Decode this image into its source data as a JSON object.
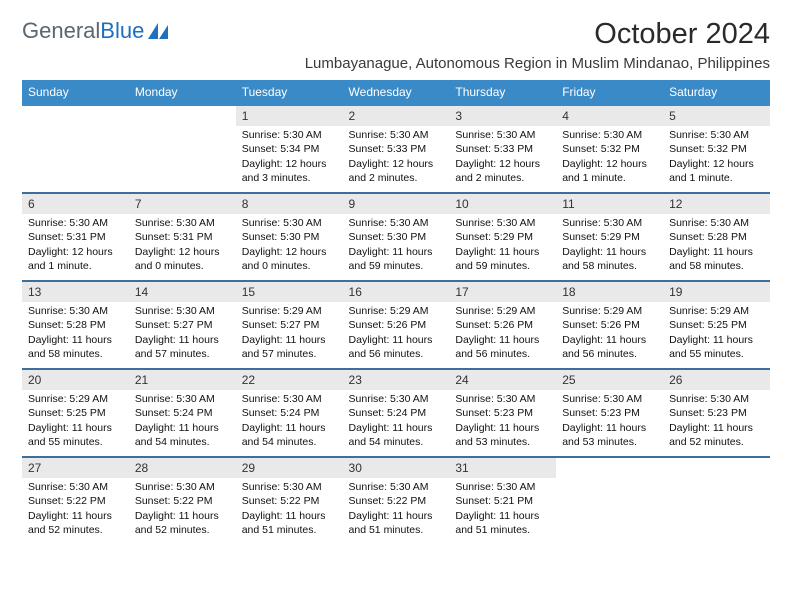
{
  "brand": {
    "part1": "General",
    "part2": "Blue"
  },
  "title": "October 2024",
  "subtitle": "Lumbayanague, Autonomous Region in Muslim Mindanao, Philippines",
  "colors": {
    "header_bg": "#3a8ac8",
    "header_text": "#ffffff",
    "row_divider": "#3c6f9e",
    "daynum_bg": "#e9e9e9",
    "brand_gray": "#5a6670",
    "brand_blue": "#1e6fc0"
  },
  "day_headers": [
    "Sunday",
    "Monday",
    "Tuesday",
    "Wednesday",
    "Thursday",
    "Friday",
    "Saturday"
  ],
  "weeks": [
    [
      null,
      null,
      {
        "n": "1",
        "sr": "5:30 AM",
        "ss": "5:34 PM",
        "dl": "12 hours and 3 minutes."
      },
      {
        "n": "2",
        "sr": "5:30 AM",
        "ss": "5:33 PM",
        "dl": "12 hours and 2 minutes."
      },
      {
        "n": "3",
        "sr": "5:30 AM",
        "ss": "5:33 PM",
        "dl": "12 hours and 2 minutes."
      },
      {
        "n": "4",
        "sr": "5:30 AM",
        "ss": "5:32 PM",
        "dl": "12 hours and 1 minute."
      },
      {
        "n": "5",
        "sr": "5:30 AM",
        "ss": "5:32 PM",
        "dl": "12 hours and 1 minute."
      }
    ],
    [
      {
        "n": "6",
        "sr": "5:30 AM",
        "ss": "5:31 PM",
        "dl": "12 hours and 1 minute."
      },
      {
        "n": "7",
        "sr": "5:30 AM",
        "ss": "5:31 PM",
        "dl": "12 hours and 0 minutes."
      },
      {
        "n": "8",
        "sr": "5:30 AM",
        "ss": "5:30 PM",
        "dl": "12 hours and 0 minutes."
      },
      {
        "n": "9",
        "sr": "5:30 AM",
        "ss": "5:30 PM",
        "dl": "11 hours and 59 minutes."
      },
      {
        "n": "10",
        "sr": "5:30 AM",
        "ss": "5:29 PM",
        "dl": "11 hours and 59 minutes."
      },
      {
        "n": "11",
        "sr": "5:30 AM",
        "ss": "5:29 PM",
        "dl": "11 hours and 58 minutes."
      },
      {
        "n": "12",
        "sr": "5:30 AM",
        "ss": "5:28 PM",
        "dl": "11 hours and 58 minutes."
      }
    ],
    [
      {
        "n": "13",
        "sr": "5:30 AM",
        "ss": "5:28 PM",
        "dl": "11 hours and 58 minutes."
      },
      {
        "n": "14",
        "sr": "5:30 AM",
        "ss": "5:27 PM",
        "dl": "11 hours and 57 minutes."
      },
      {
        "n": "15",
        "sr": "5:29 AM",
        "ss": "5:27 PM",
        "dl": "11 hours and 57 minutes."
      },
      {
        "n": "16",
        "sr": "5:29 AM",
        "ss": "5:26 PM",
        "dl": "11 hours and 56 minutes."
      },
      {
        "n": "17",
        "sr": "5:29 AM",
        "ss": "5:26 PM",
        "dl": "11 hours and 56 minutes."
      },
      {
        "n": "18",
        "sr": "5:29 AM",
        "ss": "5:26 PM",
        "dl": "11 hours and 56 minutes."
      },
      {
        "n": "19",
        "sr": "5:29 AM",
        "ss": "5:25 PM",
        "dl": "11 hours and 55 minutes."
      }
    ],
    [
      {
        "n": "20",
        "sr": "5:29 AM",
        "ss": "5:25 PM",
        "dl": "11 hours and 55 minutes."
      },
      {
        "n": "21",
        "sr": "5:30 AM",
        "ss": "5:24 PM",
        "dl": "11 hours and 54 minutes."
      },
      {
        "n": "22",
        "sr": "5:30 AM",
        "ss": "5:24 PM",
        "dl": "11 hours and 54 minutes."
      },
      {
        "n": "23",
        "sr": "5:30 AM",
        "ss": "5:24 PM",
        "dl": "11 hours and 54 minutes."
      },
      {
        "n": "24",
        "sr": "5:30 AM",
        "ss": "5:23 PM",
        "dl": "11 hours and 53 minutes."
      },
      {
        "n": "25",
        "sr": "5:30 AM",
        "ss": "5:23 PM",
        "dl": "11 hours and 53 minutes."
      },
      {
        "n": "26",
        "sr": "5:30 AM",
        "ss": "5:23 PM",
        "dl": "11 hours and 52 minutes."
      }
    ],
    [
      {
        "n": "27",
        "sr": "5:30 AM",
        "ss": "5:22 PM",
        "dl": "11 hours and 52 minutes."
      },
      {
        "n": "28",
        "sr": "5:30 AM",
        "ss": "5:22 PM",
        "dl": "11 hours and 52 minutes."
      },
      {
        "n": "29",
        "sr": "5:30 AM",
        "ss": "5:22 PM",
        "dl": "11 hours and 51 minutes."
      },
      {
        "n": "30",
        "sr": "5:30 AM",
        "ss": "5:22 PM",
        "dl": "11 hours and 51 minutes."
      },
      {
        "n": "31",
        "sr": "5:30 AM",
        "ss": "5:21 PM",
        "dl": "11 hours and 51 minutes."
      },
      null,
      null
    ]
  ],
  "labels": {
    "sunrise": "Sunrise: ",
    "sunset": "Sunset: ",
    "daylight": "Daylight: "
  }
}
